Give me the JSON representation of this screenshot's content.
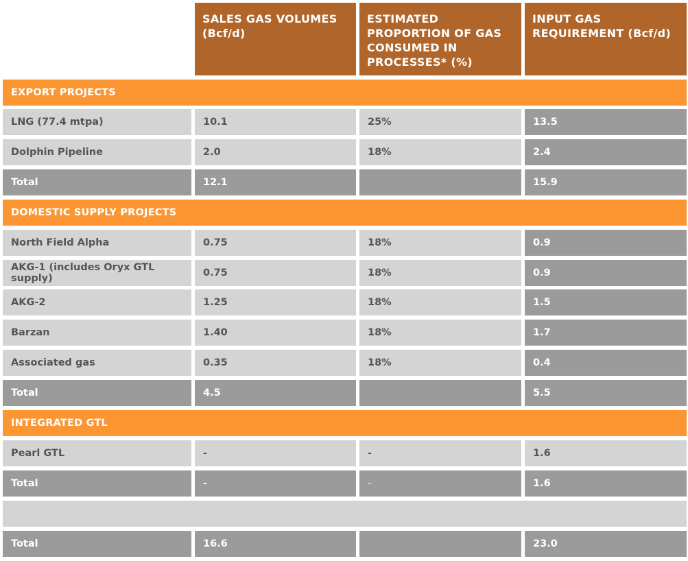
{
  "header": {
    "col1": "SALES GAS VOLUMES (Bcf/d)",
    "col2": "ESTIMATED PROPORTION OF GAS CONSUMED IN PROCESSES* (%)",
    "col3": "INPUT GAS REQUIREMENT (Bcf/d)"
  },
  "sections": {
    "export": "EXPORT PROJECTS",
    "domestic": "DOMESTIC SUPPLY PROJECTS",
    "gtl": "INTEGRATED GTL"
  },
  "rows": {
    "lng": {
      "name": "LNG (77.4 mtpa)",
      "sales": "10.1",
      "pct": "25%",
      "input": "13.5"
    },
    "dolphin": {
      "name": "Dolphin Pipeline",
      "sales": "2.0",
      "pct": "18%",
      "input": "2.4"
    },
    "export_total": {
      "name": "Total",
      "sales": "12.1",
      "pct": "",
      "input": "15.9"
    },
    "nfa": {
      "name": "North Field Alpha",
      "sales": "0.75",
      "pct": "18%",
      "input": "0.9"
    },
    "akg1": {
      "name": "AKG-1 (includes Oryx GTL supply)",
      "sales": "0.75",
      "pct": "18%",
      "input": "0.9"
    },
    "akg2": {
      "name": "AKG-2",
      "sales": "1.25",
      "pct": "18%",
      "input": "1.5"
    },
    "barzan": {
      "name": "Barzan",
      "sales": "1.40",
      "pct": "18%",
      "input": "1.7"
    },
    "assoc": {
      "name": "Associated gas",
      "sales": "0.35",
      "pct": "18%",
      "input": "0.4"
    },
    "domestic_total": {
      "name": "Total",
      "sales": "4.5",
      "pct": "",
      "input": "5.5"
    },
    "pearl": {
      "name": "Pearl GTL",
      "sales": "-",
      "pct": "-",
      "input": "1.6"
    },
    "gtl_total": {
      "name": "Total",
      "sales": "-",
      "pct": "-",
      "input": "1.6"
    },
    "grand_total": {
      "name": "Total",
      "sales": "16.6",
      "pct": "",
      "input": "23.0"
    }
  }
}
